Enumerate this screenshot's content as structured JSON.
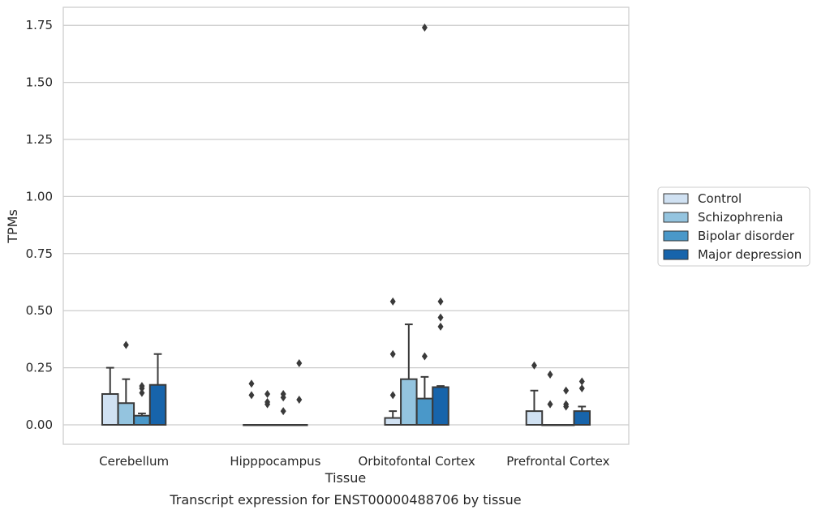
{
  "caption": "Transcript expression for ENST00000488706 by tissue",
  "chart_data": {
    "type": "box",
    "title": "",
    "xlabel": "Tissue",
    "ylabel": "TPMs",
    "ylim": [
      -0.085,
      1.83
    ],
    "yticks": [
      0.0,
      0.25,
      0.5,
      0.75,
      1.0,
      1.25,
      1.5,
      1.75
    ],
    "ytick_labels": [
      "0.00",
      "0.25",
      "0.50",
      "0.75",
      "1.00",
      "1.25",
      "1.50",
      "1.75"
    ],
    "grid": "horizontal",
    "legend_position": "right",
    "categories": [
      "Cerebellum",
      "Hipppocampus",
      "Orbitofontal Cortex",
      "Prefrontal Cortex"
    ],
    "series": [
      {
        "name": "Control",
        "color": "#d0e1f2",
        "boxes": [
          {
            "q1": 0.0,
            "median": 0.0,
            "q3": 0.135,
            "whisker_low": 0.0,
            "whisker_high": 0.25,
            "outliers": []
          },
          {
            "q1": 0.0,
            "median": 0.0,
            "q3": 0.0,
            "whisker_low": 0.0,
            "whisker_high": 0.0,
            "outliers": [
              0.13,
              0.18
            ]
          },
          {
            "q1": 0.0,
            "median": 0.0,
            "q3": 0.03,
            "whisker_low": 0.0,
            "whisker_high": 0.06,
            "outliers": [
              0.13,
              0.31,
              0.54
            ]
          },
          {
            "q1": 0.0,
            "median": 0.0,
            "q3": 0.06,
            "whisker_low": 0.0,
            "whisker_high": 0.15,
            "outliers": [
              0.26
            ]
          }
        ]
      },
      {
        "name": "Schizophrenia",
        "color": "#94c4df",
        "boxes": [
          {
            "q1": 0.0,
            "median": 0.0,
            "q3": 0.095,
            "whisker_low": 0.0,
            "whisker_high": 0.2,
            "outliers": [
              0.35
            ]
          },
          {
            "q1": 0.0,
            "median": 0.0,
            "q3": 0.0,
            "whisker_low": 0.0,
            "whisker_high": 0.0,
            "outliers": [
              0.09,
              0.1,
              0.135
            ]
          },
          {
            "q1": 0.0,
            "median": 0.0,
            "q3": 0.2,
            "whisker_low": 0.0,
            "whisker_high": 0.44,
            "outliers": []
          },
          {
            "q1": 0.0,
            "median": 0.0,
            "q3": 0.0,
            "whisker_low": 0.0,
            "whisker_high": 0.0,
            "outliers": [
              0.09,
              0.22
            ]
          }
        ]
      },
      {
        "name": "Bipolar disorder",
        "color": "#4a98c9",
        "boxes": [
          {
            "q1": 0.0,
            "median": 0.0,
            "q3": 0.04,
            "whisker_low": 0.0,
            "whisker_high": 0.05,
            "outliers": [
              0.14,
              0.16,
              0.17
            ]
          },
          {
            "q1": 0.0,
            "median": 0.0,
            "q3": 0.0,
            "whisker_low": 0.0,
            "whisker_high": 0.0,
            "outliers": [
              0.06,
              0.12,
              0.135
            ]
          },
          {
            "q1": 0.0,
            "median": 0.0,
            "q3": 0.115,
            "whisker_low": 0.0,
            "whisker_high": 0.21,
            "outliers": [
              0.3,
              1.74
            ]
          },
          {
            "q1": 0.0,
            "median": 0.0,
            "q3": 0.0,
            "whisker_low": 0.0,
            "whisker_high": 0.0,
            "outliers": [
              0.08,
              0.09,
              0.15
            ]
          }
        ]
      },
      {
        "name": "Major depression",
        "color": "#1764ab",
        "boxes": [
          {
            "q1": 0.0,
            "median": 0.0,
            "q3": 0.175,
            "whisker_low": 0.0,
            "whisker_high": 0.31,
            "outliers": []
          },
          {
            "q1": 0.0,
            "median": 0.0,
            "q3": 0.0,
            "whisker_low": 0.0,
            "whisker_high": 0.0,
            "outliers": [
              0.11,
              0.27
            ]
          },
          {
            "q1": 0.0,
            "median": 0.0,
            "q3": 0.165,
            "whisker_low": 0.0,
            "whisker_high": 0.17,
            "outliers": [
              0.43,
              0.47,
              0.54
            ]
          },
          {
            "q1": 0.0,
            "median": 0.0,
            "q3": 0.06,
            "whisker_low": 0.0,
            "whisker_high": 0.08,
            "outliers": [
              0.16,
              0.19
            ]
          }
        ]
      }
    ]
  }
}
